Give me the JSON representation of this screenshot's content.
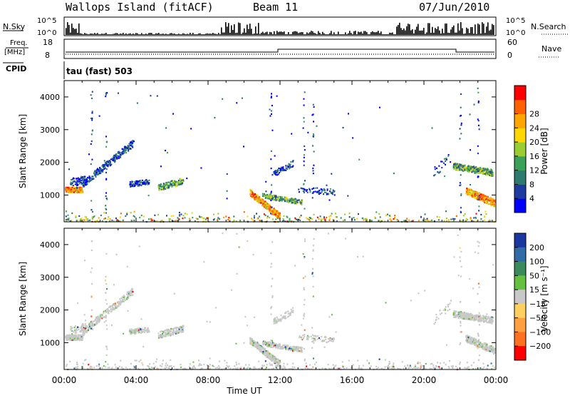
{
  "header": {
    "site": "Wallops Island (fitACF)",
    "beam": "Beam 11",
    "date": "07/Jun/2010"
  },
  "panels": {
    "nsky_label": "N.Sky",
    "nsky_ticks": [
      "10^5",
      "10^0"
    ],
    "nsearch_label": "N.Search",
    "freq_label": "Freq.",
    "freq_unit": "[MHz]",
    "freq_ticks": [
      "18",
      "8"
    ],
    "nave_ticks": [
      "60",
      "0"
    ],
    "nave_label": "Nave",
    "cpid_label": "CPID",
    "cpid_text": "tau (fast) 503"
  },
  "chart_data": [
    {
      "type": "heatmap",
      "id": "power",
      "xlabel": "Time UT",
      "ylabel": "Slant Range [km]",
      "x_ticks": [
        "00:00",
        "04:00",
        "08:00",
        "12:00",
        "16:00",
        "20:00",
        "00:00"
      ],
      "x_range_hours": [
        0,
        24
      ],
      "y_ticks": [
        1000,
        2000,
        3000,
        4000
      ],
      "y_range_km": [
        180,
        4500
      ],
      "colorbar": {
        "label": "Power [dB]",
        "ticks": [
          "4",
          "8",
          "12",
          "16",
          "20",
          "24",
          "28"
        ],
        "range": [
          0,
          30
        ],
        "colors": [
          "#0000ff",
          "#1e3ca0",
          "#2d7a6e",
          "#3aa05a",
          "#9acd32",
          "#ffd700",
          "#ffa500",
          "#ff6000",
          "#ff0000"
        ]
      },
      "features": [
        {
          "t_start": 0.0,
          "t_end": 1.0,
          "r_start": 1150,
          "r_end": 1350,
          "level": "high"
        },
        {
          "t_start": 1.0,
          "t_end": 3.8,
          "r_start": 1300,
          "r_end": 2650,
          "level": "low"
        },
        {
          "t_start": 3.5,
          "t_end": 6.7,
          "r_start": 1250,
          "r_end": 1550,
          "level": "medium"
        },
        {
          "t_start": 10.3,
          "t_end": 13.0,
          "r_start": 300,
          "r_end": 1200,
          "level": "high"
        },
        {
          "t_start": 21.5,
          "t_end": 24.0,
          "r_start": 1600,
          "r_end": 2000,
          "level": "medium"
        },
        {
          "t_start": 22.0,
          "t_end": 24.0,
          "r_start": 700,
          "r_end": 1200,
          "level": "high"
        }
      ]
    },
    {
      "type": "heatmap",
      "id": "velocity",
      "xlabel": "Time UT",
      "ylabel": "Slant Range [km]",
      "x_ticks": [
        "00:00",
        "04:00",
        "08:00",
        "12:00",
        "16:00",
        "20:00",
        "00:00"
      ],
      "x_range_hours": [
        0,
        24
      ],
      "y_ticks": [
        1000,
        2000,
        3000,
        4000
      ],
      "y_range_km": [
        180,
        4500
      ],
      "colorbar": {
        "label": "Velocity [m s⁻¹]",
        "ticks": [
          "200",
          "100",
          "50",
          "15",
          "−15",
          "−50",
          "−100",
          "−200"
        ],
        "colors": [
          "#1a36a0",
          "#2f6ca8",
          "#3a8a5e",
          "#66c040",
          "#c8c8c8",
          "#ffd060",
          "#ffa040",
          "#ff7020",
          "#ff0000"
        ]
      },
      "features": [
        {
          "t_start": 0.0,
          "t_end": 3.8,
          "r_start": 1150,
          "r_end": 2650,
          "velocity": "near zero (ground scatter)"
        },
        {
          "t_start": 3.5,
          "t_end": 6.7,
          "r_start": 1250,
          "r_end": 1550,
          "velocity": "near zero"
        },
        {
          "t_start": 10.3,
          "t_end": 13.5,
          "r_start": 300,
          "r_end": 1300,
          "velocity": "near zero"
        },
        {
          "t_start": 21.5,
          "t_end": 24.0,
          "r_start": 600,
          "r_end": 2000,
          "velocity": "near zero"
        }
      ]
    }
  ],
  "colors": {
    "ground_scatter": "#c8c8c8",
    "axis": "#000000"
  }
}
